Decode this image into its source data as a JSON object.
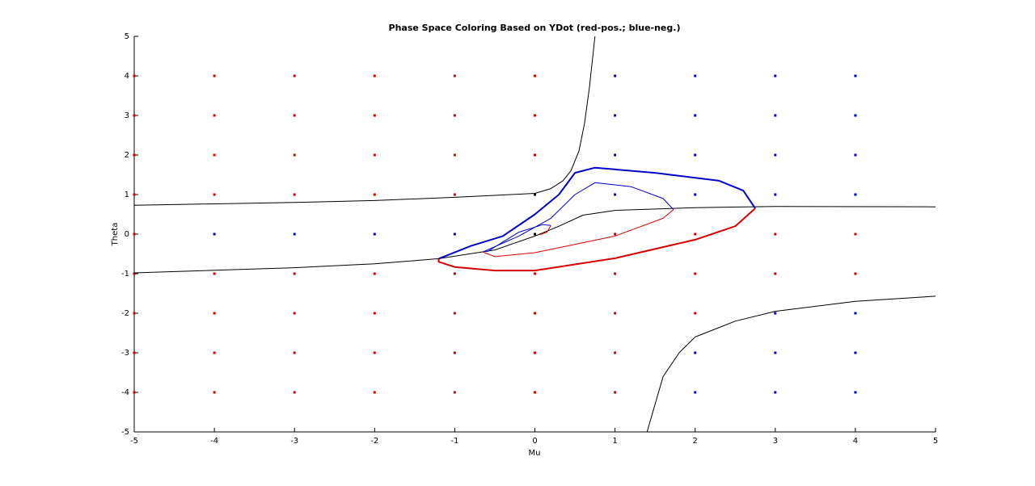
{
  "chart_data": {
    "type": "scatter",
    "title": "Phase Space Coloring Based on YDot (red-pos.; blue-neg.)",
    "x_label": "Mu",
    "y_label": "Theta",
    "xlim": [
      -5,
      5
    ],
    "ylim": [
      -5,
      5
    ],
    "xticks": [
      -5,
      -4,
      -3,
      -2,
      -1,
      0,
      1,
      2,
      3,
      4,
      5
    ],
    "yticks": [
      -5,
      -4,
      -3,
      -2,
      -1,
      0,
      1,
      2,
      3,
      4,
      5
    ],
    "grid": false,
    "series": [
      {
        "mode": "markers",
        "color": "#d40000",
        "x": [
          -5,
          -4,
          -3,
          -2,
          -1,
          0,
          -5,
          -4,
          -3,
          -2,
          -1,
          0,
          -5,
          -4,
          -3,
          -2,
          -1,
          0,
          -5,
          -4,
          -3,
          -2,
          -1,
          -5,
          1,
          2,
          3,
          4,
          -5,
          -4,
          -3,
          -2,
          -1,
          0,
          1,
          2,
          3,
          4,
          -5,
          -4,
          -3,
          -2,
          -1,
          0,
          1,
          2,
          -5,
          -4,
          -3,
          -2,
          -1,
          0,
          1,
          -5,
          -4,
          -3,
          -2,
          -1,
          0,
          1
        ],
        "y": [
          4,
          4,
          4,
          4,
          4,
          4,
          3,
          3,
          3,
          3,
          3,
          3,
          2,
          2,
          2,
          2,
          2,
          2,
          1,
          1,
          1,
          1,
          1,
          0,
          0,
          0,
          0,
          0,
          -1,
          -1,
          -1,
          -1,
          -1,
          -1,
          -1,
          -1,
          -1,
          -1,
          -2,
          -2,
          -2,
          -2,
          -2,
          -2,
          -2,
          -2,
          -3,
          -3,
          -3,
          -3,
          -3,
          -3,
          -3,
          -4,
          -4,
          -4,
          -4,
          -4,
          -4,
          -4
        ]
      },
      {
        "mode": "markers",
        "color": "#0000c8",
        "x": [
          1,
          2,
          3,
          4,
          1,
          2,
          3,
          4,
          1,
          2,
          3,
          4,
          1,
          2,
          3,
          4,
          -4,
          -3,
          -2,
          -1,
          3,
          4,
          2,
          3,
          4,
          2,
          3,
          4
        ],
        "y": [
          4,
          4,
          4,
          4,
          3,
          3,
          3,
          3,
          2,
          2,
          2,
          2,
          1,
          1,
          1,
          1,
          0,
          0,
          0,
          0,
          -2,
          -2,
          -3,
          -3,
          -3,
          -4,
          -4,
          -4
        ]
      },
      {
        "mode": "markers",
        "color": "#000000",
        "x": [
          0,
          0
        ],
        "y": [
          1,
          0
        ]
      },
      {
        "mode": "line",
        "color": "#000000",
        "width": 1,
        "x": [
          -5,
          -3,
          -2,
          -1,
          -0.5,
          0,
          0.2,
          0.35,
          0.45,
          0.55,
          0.62,
          0.68,
          0.75
        ],
        "y": [
          0.73,
          0.8,
          0.85,
          0.93,
          0.98,
          1.03,
          1.15,
          1.35,
          1.6,
          2.1,
          2.8,
          3.7,
          5
        ]
      },
      {
        "mode": "line",
        "color": "#000000",
        "width": 1,
        "x": [
          -5,
          -3,
          -2,
          -1.2,
          -0.5,
          0,
          0.3,
          0.6,
          1,
          2,
          3,
          5
        ],
        "y": [
          -0.98,
          -0.85,
          -0.75,
          -0.62,
          -0.4,
          -0.05,
          0.2,
          0.48,
          0.6,
          0.67,
          0.7,
          0.69
        ]
      },
      {
        "mode": "line",
        "color": "#000000",
        "width": 1,
        "x": [
          1.4,
          1.6,
          1.8,
          2,
          2.5,
          3,
          4,
          5
        ],
        "y": [
          -5,
          -3.6,
          -3,
          -2.6,
          -2.2,
          -1.95,
          -1.7,
          -1.57
        ]
      },
      {
        "mode": "line",
        "color": "#0000c8",
        "width": 2,
        "x": [
          -1.2,
          -0.8,
          -0.4,
          0,
          0.3,
          0.5,
          0.75,
          1.5,
          2.3,
          2.6,
          2.75
        ],
        "y": [
          -0.62,
          -0.3,
          -0.05,
          0.5,
          1.0,
          1.55,
          1.68,
          1.55,
          1.35,
          1.1,
          0.65
        ]
      },
      {
        "mode": "line",
        "color": "#d40000",
        "width": 2,
        "x": [
          2.75,
          2.5,
          2,
          1,
          0,
          -0.5,
          -1,
          -1.2,
          -1.2
        ],
        "y": [
          0.65,
          0.2,
          -0.14,
          -0.61,
          -0.92,
          -0.92,
          -0.83,
          -0.7,
          -0.62
        ]
      },
      {
        "mode": "line",
        "color": "#0000c8",
        "width": 1,
        "x": [
          -0.65,
          -0.2,
          0.2,
          0.5,
          0.75,
          1.2,
          1.6,
          1.73
        ],
        "y": [
          -0.45,
          -0.05,
          0.4,
          1.0,
          1.3,
          1.2,
          0.9,
          0.62
        ]
      },
      {
        "mode": "line",
        "color": "#d40000",
        "width": 1,
        "x": [
          1.73,
          1.6,
          1,
          0,
          -0.5,
          -0.65
        ],
        "y": [
          0.62,
          0.4,
          -0.05,
          -0.47,
          -0.57,
          -0.45
        ]
      },
      {
        "mode": "line",
        "color": "#0000c8",
        "width": 1,
        "x": [
          -0.6,
          -0.2,
          0.1,
          0.2
        ],
        "y": [
          -0.45,
          0.05,
          0.24,
          0.22
        ]
      },
      {
        "mode": "line",
        "color": "#d40000",
        "width": 1,
        "x": [
          0.2,
          0.15,
          0.05
        ],
        "y": [
          0.22,
          0.05,
          -0.02
        ]
      }
    ]
  }
}
